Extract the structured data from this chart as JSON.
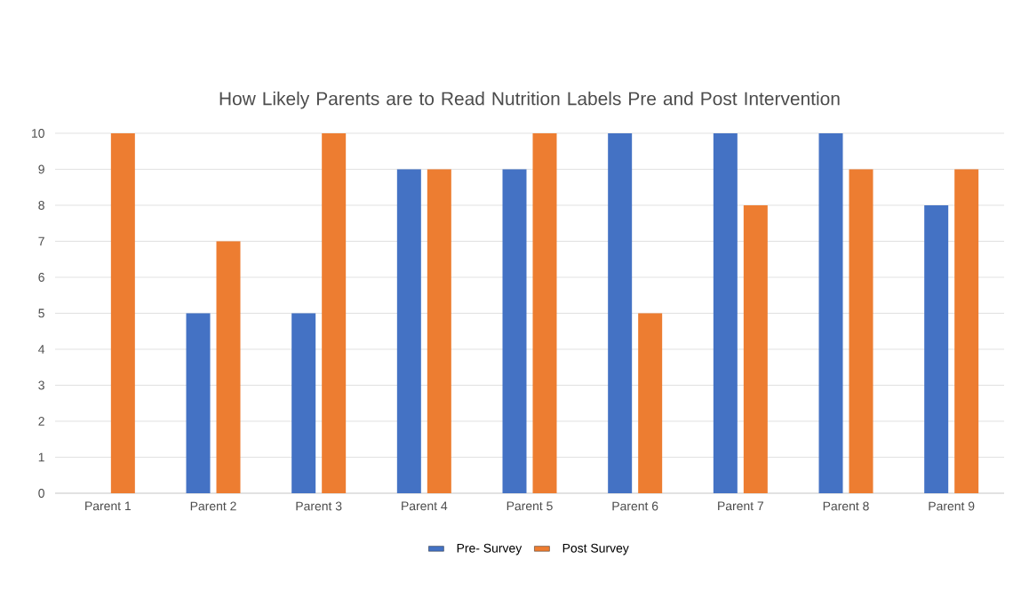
{
  "chart_data": {
    "type": "bar",
    "title": "How Likely Parents are to Read Nutrition Labels Pre and Post Intervention",
    "categories": [
      "Parent  1",
      "Parent 2",
      "Parent 3",
      "Parent 4",
      "Parent 5",
      "Parent 6",
      "Parent 7",
      "Parent 8",
      "Parent 9"
    ],
    "series": [
      {
        "name": "Pre- Survey",
        "color": "#4472c4",
        "values": [
          null,
          5,
          5,
          9,
          9,
          10,
          10,
          10,
          8
        ]
      },
      {
        "name": "Post Survey",
        "color": "#ed7d31",
        "values": [
          10,
          7,
          10,
          9,
          10,
          5,
          8,
          9,
          9
        ]
      }
    ],
    "ylim": [
      0,
      10
    ],
    "yticks": [
      0,
      1,
      2,
      3,
      4,
      5,
      6,
      7,
      8,
      9,
      10
    ],
    "grid": "y",
    "legend": "bottom"
  }
}
